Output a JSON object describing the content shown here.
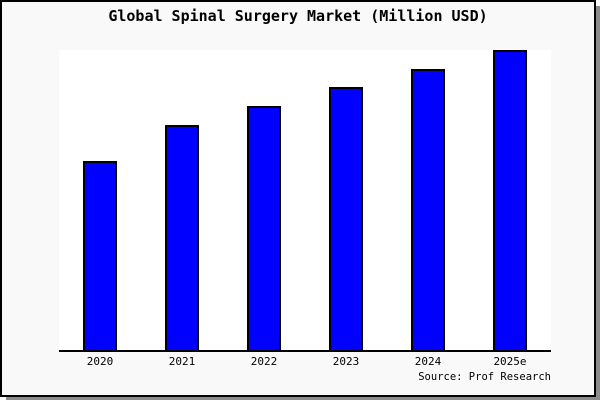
{
  "chart_data": {
    "type": "bar",
    "title": "Global Spinal Surgery Market (Million USD)",
    "categories": [
      "2020",
      "2021",
      "2022",
      "2023",
      "2024",
      "2025e"
    ],
    "series": [
      {
        "name": "Global Spinal Surgery Market",
        "values_pct_of_max": [
          63.0,
          75.0,
          81.3,
          87.7,
          93.7,
          100.0
        ]
      }
    ],
    "value_scale_note": "no y-axis tick labels shown; bar heights are relative, 2025e = 100",
    "xlabel": "",
    "ylabel": "",
    "grid": false,
    "legend": "none",
    "source_label": "Source: Prof Research",
    "colors": {
      "bar_fill": "#0000ff",
      "bar_border": "#000000",
      "plot_background": "#ffffff",
      "canvas_background": "#f9f9f9",
      "frame_border": "#000000",
      "frame_shadow": "#8c8c8c",
      "axis_line": "#000000",
      "text": "#000000"
    }
  }
}
